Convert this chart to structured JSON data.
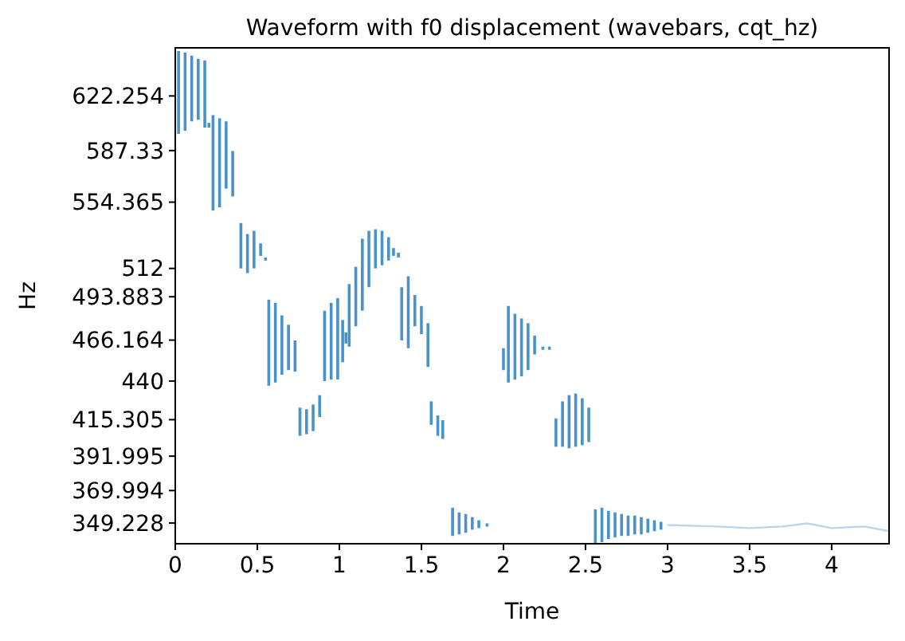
{
  "chart_data": {
    "type": "bar",
    "title": "Waveform with f0 displacement (wavebars, cqt_hz)",
    "xlabel": "Time",
    "ylabel": "Hz",
    "xlim": [
      0,
      4.35
    ],
    "xticks": [
      0,
      0.5,
      1,
      1.5,
      2,
      2.5,
      3,
      3.5,
      4
    ],
    "ylim": [
      336,
      653
    ],
    "yticks": [
      349.228,
      369.994,
      391.995,
      415.305,
      440,
      466.164,
      493.883,
      512,
      554.365,
      587.33,
      622.254
    ],
    "series": [
      {
        "color": "#4a93c9",
        "x": [
          0.02,
          0.06,
          0.1,
          0.14,
          0.18,
          0.205,
          0.23,
          0.27,
          0.31,
          0.35,
          0.4,
          0.44,
          0.48,
          0.52,
          0.55,
          0.57,
          0.61,
          0.65,
          0.69,
          0.73,
          0.76,
          0.8,
          0.84,
          0.88,
          0.91,
          0.95,
          0.99,
          1.02,
          1.04,
          1.06,
          1.1,
          1.14,
          1.18,
          1.22,
          1.26,
          1.3,
          1.33,
          1.36,
          1.38,
          1.42,
          1.46,
          1.5,
          1.54,
          1.56,
          1.6,
          1.63,
          1.69,
          1.73,
          1.77,
          1.81,
          1.85,
          1.9,
          2.0,
          2.03,
          2.07,
          2.11,
          2.15,
          2.19,
          2.24,
          2.28,
          2.32,
          2.36,
          2.4,
          2.44,
          2.48,
          2.52,
          2.56,
          2.6,
          2.64,
          2.68,
          2.72,
          2.76,
          2.8,
          2.84,
          2.88,
          2.92,
          2.96
        ],
        "base": [
          598,
          600,
          606,
          607,
          602,
          602,
          549,
          551,
          563,
          558,
          512,
          509,
          512,
          520,
          517,
          437,
          439,
          444,
          447,
          446,
          405,
          406,
          408,
          417,
          440,
          441,
          441,
          452,
          464,
          462,
          475,
          485,
          500,
          512,
          514,
          517,
          520,
          519,
          466,
          461,
          475,
          470,
          449,
          412,
          405,
          403,
          341,
          342,
          343,
          345,
          346,
          347,
          447,
          439,
          441,
          443,
          447,
          457,
          460,
          460,
          398,
          398,
          397,
          398,
          399,
          401,
          336,
          337,
          339,
          340,
          341,
          341,
          342,
          342,
          343,
          344,
          345
        ],
        "values": [
          53,
          50,
          42,
          39,
          43,
          3,
          61,
          57,
          43,
          29,
          29,
          25,
          24,
          8,
          2,
          55,
          51,
          38,
          29,
          20,
          18,
          16,
          17,
          14,
          45,
          49,
          52,
          27,
          7,
          40,
          38,
          46,
          36,
          25,
          22,
          15,
          5,
          3,
          34,
          46,
          20,
          18,
          28,
          15,
          13,
          12,
          18,
          14,
          12,
          8,
          5,
          2,
          14,
          49,
          42,
          37,
          30,
          12,
          2,
          2,
          18,
          29,
          34,
          34,
          30,
          22,
          22,
          22,
          18,
          16,
          14,
          13,
          12,
          11,
          9,
          7,
          5
        ]
      },
      {
        "type": "line",
        "color": "#b9d6ee",
        "x": [
          3.0,
          3.3,
          3.5,
          3.7,
          3.85,
          4.0,
          4.2,
          4.35
        ],
        "values": [
          348,
          347,
          346,
          347,
          349,
          346,
          347,
          344
        ]
      }
    ]
  }
}
